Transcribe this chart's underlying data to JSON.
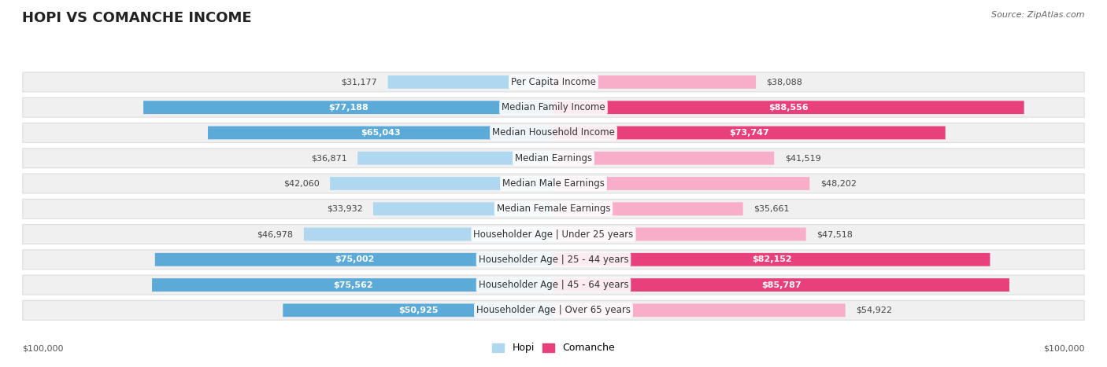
{
  "title": "HOPI VS COMANCHE INCOME",
  "source": "Source: ZipAtlas.com",
  "categories": [
    "Per Capita Income",
    "Median Family Income",
    "Median Household Income",
    "Median Earnings",
    "Median Male Earnings",
    "Median Female Earnings",
    "Householder Age | Under 25 years",
    "Householder Age | 25 - 44 years",
    "Householder Age | 45 - 64 years",
    "Householder Age | Over 65 years"
  ],
  "hopi_values": [
    31177,
    77188,
    65043,
    36871,
    42060,
    33932,
    46978,
    75002,
    75562,
    50925
  ],
  "comanche_values": [
    38088,
    88556,
    73747,
    41519,
    48202,
    35661,
    47518,
    82152,
    85787,
    54922
  ],
  "max_value": 100000,
  "hopi_color_light": "#add8f0",
  "hopi_color_dark": "#5baad8",
  "comanche_color_light": "#f8aec8",
  "comanche_color_dark": "#e8407a",
  "hopi_label": "Hopi",
  "comanche_label": "Comanche",
  "hopi_threshold": 50000,
  "comanche_threshold": 60000,
  "title_fontsize": 13,
  "label_fontsize": 8.5,
  "value_fontsize": 8,
  "source_fontsize": 8
}
